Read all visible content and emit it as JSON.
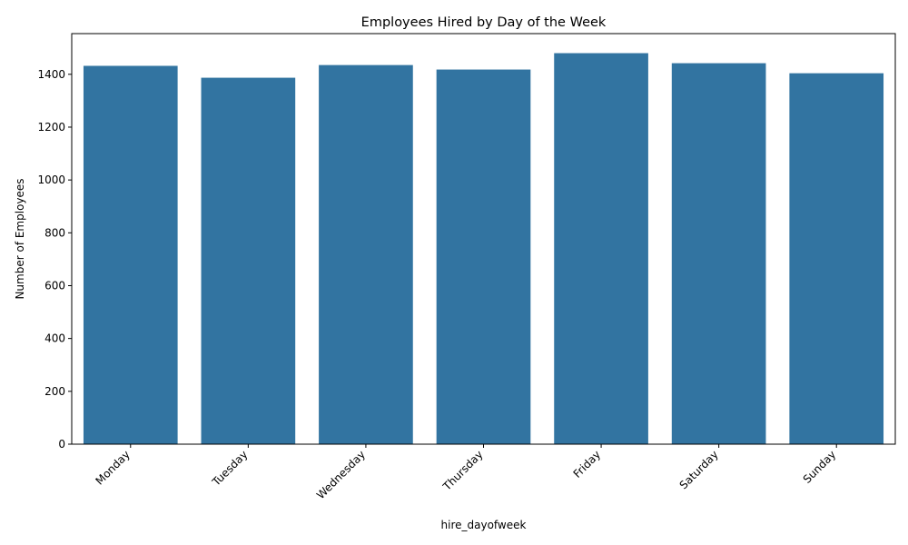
{
  "chart_data": {
    "type": "bar",
    "title": "Employees Hired by Day of the Week",
    "xlabel": "hire_dayofweek",
    "ylabel": "Number of Employees",
    "categories": [
      "Monday",
      "Tuesday",
      "Wednesday",
      "Thursday",
      "Friday",
      "Saturday",
      "Sunday"
    ],
    "values": [
      1432,
      1387,
      1435,
      1418,
      1480,
      1442,
      1404
    ],
    "yticks": [
      0,
      200,
      400,
      600,
      800,
      1000,
      1200,
      1400
    ],
    "ylim": [
      0,
      1554
    ],
    "bar_color": "#3274a1",
    "grid": false,
    "legend": "none"
  }
}
